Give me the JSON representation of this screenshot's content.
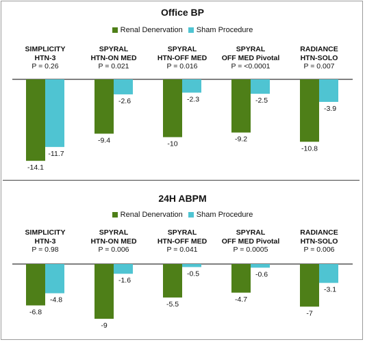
{
  "colors": {
    "renal": "#4e7f18",
    "sham": "#4fc4d2"
  },
  "chart_data": [
    {
      "type": "bar",
      "title": "Office BP",
      "legend": [
        "Renal Denervation",
        "Sham Procedure"
      ],
      "groups": [
        {
          "name1": "SIMPLICITY",
          "name2": "HTN-3",
          "p": "P = 0.26"
        },
        {
          "name1": "SPYRAL",
          "name2": "HTN-ON MED",
          "p": "P = 0.021"
        },
        {
          "name1": "SPYRAL",
          "name2": "HTN-OFF MED",
          "p": "P = 0.016"
        },
        {
          "name1": "SPYRAL",
          "name2": "OFF MED Pivotal",
          "p": "P = <0.0001"
        },
        {
          "name1": "RADIANCE",
          "name2": "HTN-SOLO",
          "p": "P = 0.007"
        }
      ],
      "series": [
        {
          "name": "Renal Denervation",
          "values": [
            -14.1,
            -9.4,
            -10,
            -9.2,
            -10.8
          ],
          "labels": [
            "-14.1",
            "-9.4",
            "-10",
            "-9.2",
            "-10.8"
          ]
        },
        {
          "name": "Sham Procedure",
          "values": [
            -11.7,
            -2.6,
            -2.3,
            -2.5,
            -3.9
          ],
          "labels": [
            "-11.7",
            "-2.6",
            "-2.3",
            "-2.5",
            "-3.9"
          ]
        }
      ]
    },
    {
      "type": "bar",
      "title": "24H ABPM",
      "legend": [
        "Renal Denervation",
        "Sham Procedure"
      ],
      "groups": [
        {
          "name1": "SIMPLICITY",
          "name2": "HTN-3",
          "p": "P = 0.98"
        },
        {
          "name1": "SPYRAL",
          "name2": "HTN-ON MED",
          "p": "P = 0.006"
        },
        {
          "name1": "SPYRAL",
          "name2": "HTN-OFF MED",
          "p": "P = 0.041"
        },
        {
          "name1": "SPYRAL",
          "name2": "OFF MED Pivotal",
          "p": "P = 0.0005"
        },
        {
          "name1": "RADIANCE",
          "name2": "HTN-SOLO",
          "p": "P = 0.006"
        }
      ],
      "series": [
        {
          "name": "Renal Denervation",
          "values": [
            -6.8,
            -9,
            -5.5,
            -4.7,
            -7
          ],
          "labels": [
            "-6.8",
            "-9",
            "-5.5",
            "-4.7",
            "-7"
          ]
        },
        {
          "name": "Sham Procedure",
          "values": [
            -4.8,
            -1.6,
            -0.5,
            -0.6,
            -3.1
          ],
          "labels": [
            "-4.8",
            "-1.6",
            "-0.5",
            "-0.6",
            "-3.1"
          ]
        }
      ]
    }
  ]
}
